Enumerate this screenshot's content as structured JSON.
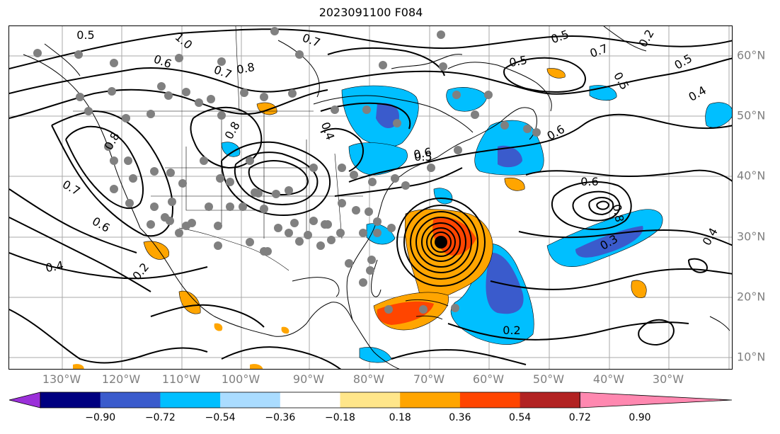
{
  "title": "2023091100 F084",
  "longitude_labels": [
    "130°W",
    "120°W",
    "110°W",
    "100°W",
    "90°W",
    "80°W",
    "70°W",
    "60°W",
    "50°W",
    "40°W",
    "30°W"
  ],
  "latitude_labels": [
    "60°N",
    "50°N",
    "40°N",
    "30°N",
    "20°N",
    "10°N"
  ],
  "colorbar": {
    "tick_labels": [
      "−0.90",
      "−0.72",
      "−0.54",
      "−0.36",
      "−0.18",
      "0.18",
      "0.36",
      "0.54",
      "0.72",
      "0.90"
    ],
    "colors": [
      "#9b30d9",
      "#000080",
      "#3a5bcc",
      "#00bfff",
      "#aadcff",
      "#ffffff",
      "#ffe68a",
      "#ffa500",
      "#ff4500",
      "#b22222",
      "#ff88b0"
    ]
  },
  "contour_labels": [
    "0.5",
    "1.0",
    "0.7",
    "0.6",
    "0.7",
    "0.8",
    "0.5",
    "0.7",
    "0.5",
    "0.5",
    "0.5",
    "0.4",
    "0.6",
    "0.6",
    "0.8",
    "0.8",
    "0.4",
    "0.5",
    "0.6",
    "0.8",
    "0.3",
    "0.4",
    "0.7",
    "0.6",
    "0.4",
    "0.2",
    "0.2",
    "0.2"
  ],
  "map_features": {
    "land_outline_color": "#000000",
    "grid_color": "#a9a9a9",
    "station_marker_color": "#808080",
    "storm_center_color": "#000000"
  }
}
